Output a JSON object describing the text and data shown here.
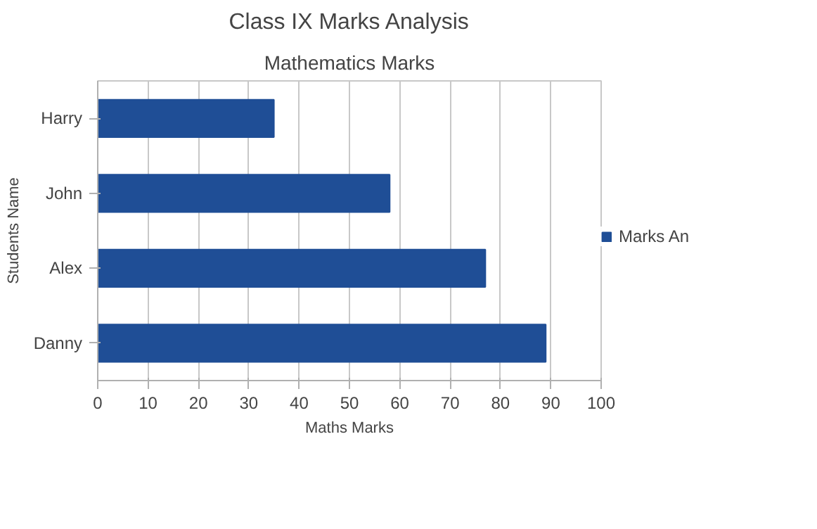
{
  "chart_data": {
    "type": "bar",
    "orientation": "horizontal",
    "title": "Class IX Marks Analysis",
    "subtitle": "Mathematics Marks",
    "xlabel": "Maths Marks",
    "ylabel": "Students Name",
    "categories": [
      "Harry",
      "John",
      "Alex",
      "Danny"
    ],
    "series": [
      {
        "name": "Marks An",
        "color": "#1f4e96",
        "values": [
          35,
          58,
          77,
          89
        ]
      }
    ],
    "xlim": [
      0,
      100
    ],
    "xticks": [
      0,
      10,
      20,
      30,
      40,
      50,
      60,
      70,
      80,
      90,
      100
    ],
    "grid": "x",
    "legend": "right"
  }
}
